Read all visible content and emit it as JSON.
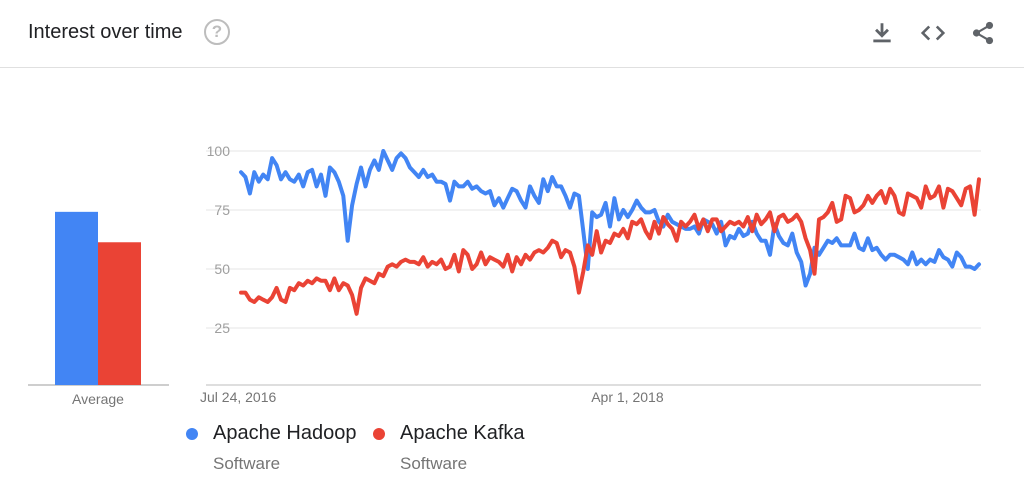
{
  "header": {
    "title": "Interest over time",
    "help_icon": "help-circle-icon",
    "tools": [
      "download-icon",
      "embed-code-icon",
      "share-icon"
    ]
  },
  "legend": [
    {
      "name": "Apache Hadoop",
      "category": "Software",
      "color": "#4285f4"
    },
    {
      "name": "Apache Kafka",
      "category": "Software",
      "color": "#ea4335"
    }
  ],
  "average_label": "Average",
  "chart_data": {
    "type": "line",
    "title": "Interest over time",
    "xlabel": "",
    "ylabel": "",
    "ylim": [
      0,
      100
    ],
    "yticks": [
      25,
      50,
      75,
      100
    ],
    "x_tick_labels": [
      {
        "label": "Jul 24, 2016",
        "index": 0
      },
      {
        "label": "Apr 1, 2018",
        "index": 88
      }
    ],
    "grid": true,
    "legend_position": "bottom-left",
    "averages": [
      {
        "name": "Apache Hadoop",
        "value": 74
      },
      {
        "name": "Apache Kafka",
        "value": 61
      }
    ],
    "series": [
      {
        "name": "Apache Hadoop",
        "color": "#4285f4",
        "values": [
          91,
          89,
          82,
          91,
          87,
          90,
          88,
          97,
          94,
          88,
          91,
          88,
          87,
          90,
          85,
          91,
          92,
          85,
          90,
          81,
          93,
          91,
          87,
          81,
          62,
          77,
          86,
          93,
          85,
          92,
          96,
          92,
          100,
          96,
          92,
          97,
          99,
          97,
          93,
          91,
          89,
          92,
          89,
          90,
          87,
          87,
          86,
          79,
          87,
          85,
          85,
          87,
          84,
          85,
          83,
          82,
          83,
          77,
          80,
          76,
          80,
          84,
          83,
          79,
          76,
          85,
          81,
          78,
          88,
          83,
          89,
          85,
          85,
          81,
          76,
          82,
          81,
          66,
          50,
          74,
          72,
          73,
          78,
          68,
          80,
          71,
          75,
          72,
          75,
          79,
          76,
          74,
          74,
          75,
          70,
          68,
          73,
          70,
          69,
          68,
          67,
          67,
          68,
          65,
          71,
          70,
          69,
          65,
          70,
          60,
          64,
          63,
          67,
          64,
          65,
          70,
          65,
          62,
          62,
          56,
          69,
          64,
          61,
          60,
          65,
          57,
          53,
          43,
          48,
          59,
          56,
          59,
          62,
          61,
          63,
          60,
          60,
          60,
          65,
          59,
          58,
          63,
          58,
          59,
          56,
          54,
          56,
          56,
          55,
          54,
          52,
          57,
          52,
          54,
          52,
          54,
          53,
          58,
          55,
          54,
          51,
          57,
          55,
          51,
          51,
          50,
          52
        ]
      },
      {
        "name": "Apache Kafka",
        "color": "#ea4335",
        "values": [
          40,
          40,
          37,
          36,
          38,
          37,
          36,
          38,
          42,
          37,
          36,
          42,
          41,
          44,
          43,
          45,
          44,
          46,
          45,
          45,
          41,
          46,
          41,
          44,
          43,
          39,
          31,
          42,
          46,
          45,
          44,
          48,
          47,
          51,
          52,
          51,
          53,
          54,
          53,
          53,
          52,
          55,
          51,
          53,
          52,
          54,
          50,
          51,
          56,
          49,
          58,
          56,
          50,
          52,
          57,
          52,
          55,
          54,
          53,
          51,
          56,
          49,
          55,
          52,
          56,
          54,
          57,
          58,
          57,
          59,
          62,
          61,
          55,
          58,
          57,
          51,
          40,
          49,
          60,
          56,
          66,
          57,
          62,
          61,
          65,
          64,
          67,
          63,
          70,
          69,
          71,
          66,
          63,
          70,
          65,
          72,
          69,
          67,
          62,
          70,
          68,
          70,
          73,
          67,
          71,
          66,
          71,
          71,
          66,
          68,
          70,
          69,
          70,
          68,
          72,
          66,
          73,
          69,
          71,
          74,
          66,
          72,
          73,
          70,
          71,
          73,
          70,
          63,
          58,
          48,
          71,
          72,
          74,
          78,
          70,
          71,
          81,
          80,
          74,
          75,
          77,
          81,
          78,
          81,
          83,
          78,
          84,
          81,
          74,
          73,
          82,
          81,
          80,
          76,
          85,
          80,
          81,
          85,
          76,
          84,
          83,
          80,
          77,
          84,
          85,
          73,
          88
        ]
      }
    ]
  }
}
